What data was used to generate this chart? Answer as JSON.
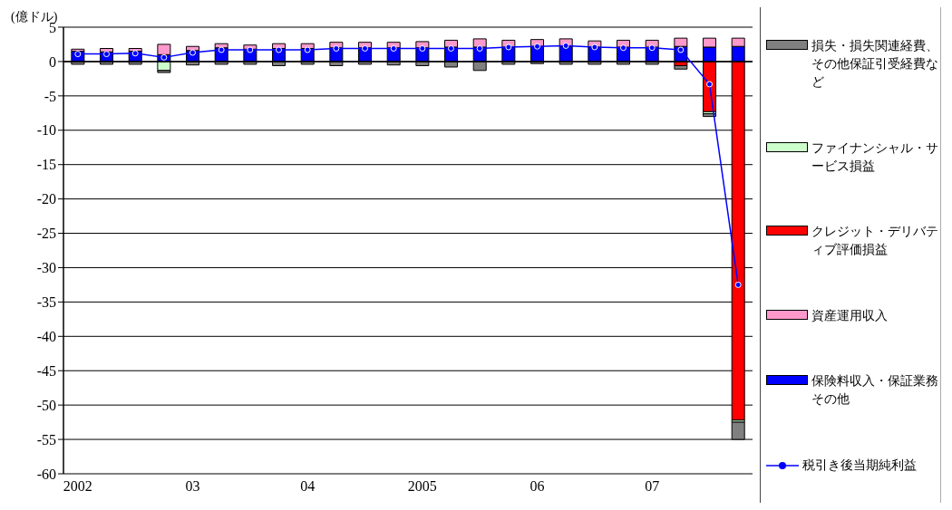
{
  "chart_data": {
    "type": "bar",
    "stacked": true,
    "ylabel": "(億ドル)",
    "categories": [
      "2002",
      null,
      null,
      null,
      "03",
      null,
      null,
      null,
      "04",
      null,
      null,
      null,
      "2005",
      null,
      null,
      null,
      "06",
      null,
      null,
      null,
      "07",
      null,
      null,
      null
    ],
    "series": [
      {
        "name": "保険料収入・保証業務その他",
        "color": "#0000ff",
        "values": [
          1.5,
          1.4,
          1.5,
          1.0,
          1.6,
          2.0,
          1.8,
          1.9,
          1.9,
          2.0,
          2.0,
          2.0,
          2.0,
          2.1,
          2.1,
          2.1,
          2.2,
          2.2,
          2.1,
          2.1,
          2.1,
          2.2,
          2.1,
          2.2
        ]
      },
      {
        "name": "資産運用収入",
        "color": "#ff99cc",
        "values": [
          0.3,
          0.5,
          0.4,
          1.5,
          0.6,
          0.6,
          0.6,
          0.7,
          0.7,
          0.8,
          0.8,
          0.8,
          0.9,
          1.0,
          1.2,
          1.0,
          1.0,
          1.1,
          0.9,
          1.0,
          1.0,
          1.2,
          1.3,
          1.2
        ]
      },
      {
        "name": "クレジット・デリバティブ評価損益",
        "color": "#ff0000",
        "values": [
          null,
          null,
          null,
          null,
          null,
          null,
          null,
          null,
          null,
          null,
          null,
          null,
          null,
          null,
          null,
          null,
          null,
          null,
          null,
          null,
          null,
          -0.6,
          -7.3,
          -52.2
        ]
      },
      {
        "name": "ファイナンシャル・サービス損益",
        "color": "#ccffcc",
        "values": [
          null,
          null,
          null,
          -1.3,
          null,
          null,
          null,
          null,
          null,
          null,
          null,
          null,
          null,
          null,
          null,
          null,
          null,
          null,
          null,
          null,
          null,
          null,
          -0.3,
          -0.3
        ]
      },
      {
        "name": "損失・損失関連経費、その他保証引受経費など",
        "color": "#808080",
        "values": [
          -0.4,
          -0.4,
          -0.4,
          -0.3,
          -0.5,
          -0.4,
          -0.4,
          -0.6,
          -0.4,
          -0.6,
          -0.4,
          -0.5,
          -0.6,
          -0.8,
          -1.3,
          -0.4,
          -0.3,
          -0.4,
          -0.4,
          -0.4,
          -0.4,
          -0.5,
          -0.4,
          -2.5
        ]
      },
      {
        "name": "税引き後当期純利益",
        "type": "line",
        "color": "#0000ff",
        "marker": "circle",
        "values": [
          1.1,
          1.1,
          1.2,
          0.6,
          1.3,
          1.7,
          1.7,
          1.7,
          1.7,
          1.9,
          1.9,
          1.9,
          1.9,
          1.9,
          1.9,
          2.1,
          2.2,
          2.3,
          2.1,
          2.0,
          2.0,
          1.7,
          -3.3,
          -32.5
        ]
      }
    ],
    "ylim": [
      -60,
      5
    ],
    "yticks": [
      -60,
      -55,
      -50,
      -45,
      -40,
      -35,
      -30,
      -25,
      -20,
      -15,
      -10,
      -5,
      0,
      5
    ],
    "grid": "y",
    "legend": "right"
  }
}
